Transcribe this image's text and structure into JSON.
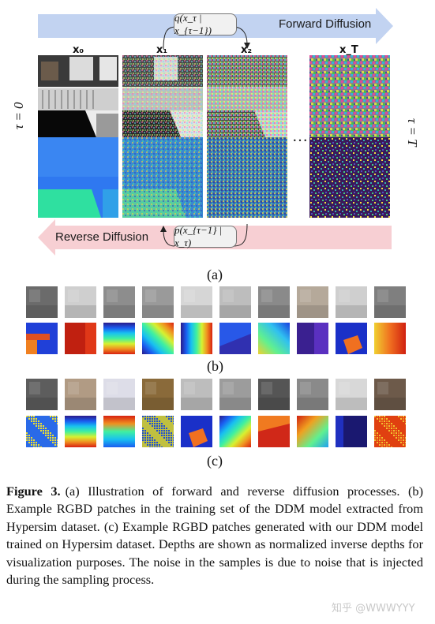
{
  "panel_a": {
    "forward_label": "Forward Diffusion",
    "reverse_label": "Reverse Diffusion",
    "forward_formula": "q(x_τ | x_{τ−1})",
    "reverse_formula": "p(x_{τ−1} | x_τ)",
    "vars": [
      "x₀",
      "x₁",
      "x₂",
      "x_T"
    ],
    "ellipsis": "…",
    "left_axis_label": "τ = 0",
    "right_axis_label": "τ = T",
    "sub_label": "(a)",
    "colors": {
      "forward_arrow": "#c2d3f1",
      "reverse_arrow": "#f7cfd3"
    }
  },
  "panel_b": {
    "sub_label": "(b)",
    "rgb_tones": [
      "#6b6b6b",
      "#cfcfcf",
      "#8d8d8d",
      "#9a9a9a",
      "#d6d6d6",
      "#bdbdbd",
      "#8a8a8a",
      "#b5a99a",
      "#cfcfcf",
      "#7f7f7f"
    ],
    "depth_maps": [
      "blue-L",
      "red",
      "gradient-v",
      "gradient-d",
      "gradient-h",
      "blue-corner",
      "gradient-h2",
      "purple",
      "blue-shape",
      "gradient-h3"
    ]
  },
  "panel_c": {
    "sub_label": "(c)",
    "rgb_tones": [
      "#5d5d5d",
      "#b19b84",
      "#dddde8",
      "#8a6a3a",
      "#bdbdbd",
      "#9c9c9c",
      "#555555",
      "#8a8a8a",
      "#d8d8d8",
      "#6d5a4a"
    ],
    "depth_maps": [
      "noisy-blue",
      "gradient-v",
      "gradient-v2",
      "noisy-yellow",
      "blue-shape",
      "gradient-v3",
      "red-shape",
      "gradient-d2",
      "dark-blue",
      "noisy-red"
    ]
  },
  "caption": {
    "figure_number": "Figure 3.",
    "text": "(a) Illustration of forward and reverse diffusion processes. (b) Example RGBD patches in the training set of the DDM model extracted from Hypersim dataset. (c) Example RGBD patches generated with our DDM model trained on Hypersim dataset. Depths are shown as normalized inverse depths for visualization purposes. The noise in the samples is due to noise that is injected during the sampling process."
  },
  "watermark": "知乎 @WWWYYY"
}
